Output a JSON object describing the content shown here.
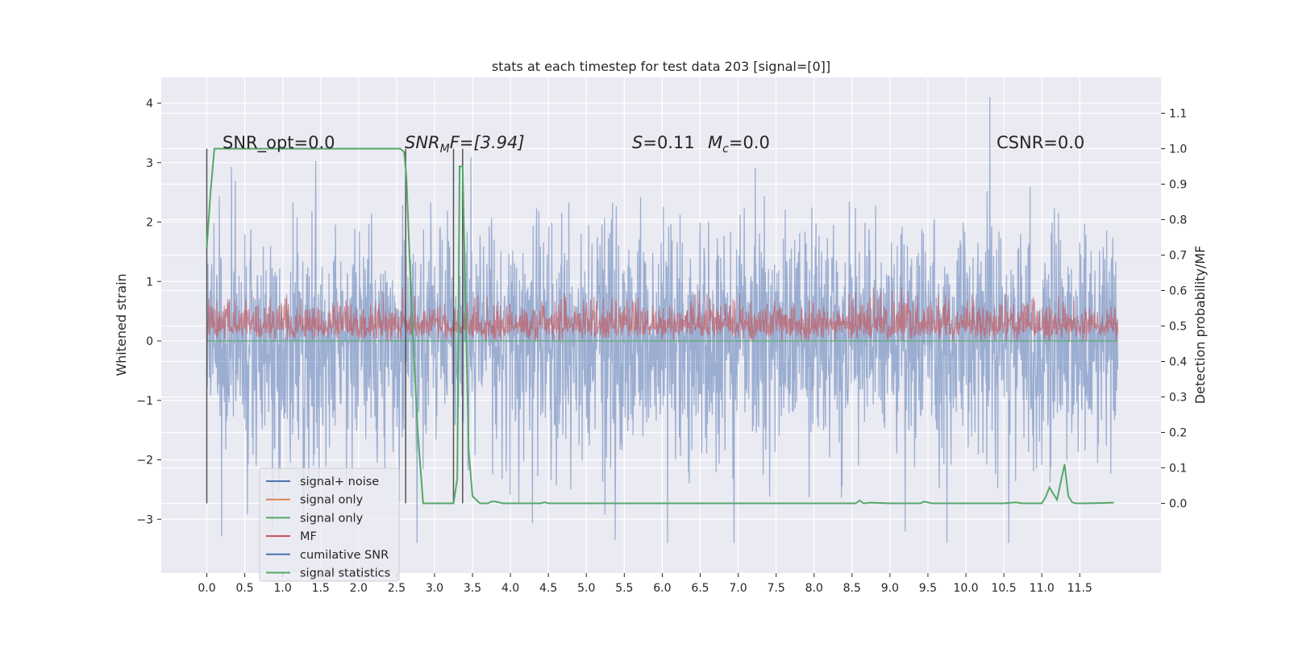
{
  "chart_data": {
    "type": "line",
    "title": "stats at each timestep for test data 203 [signal=[0]]",
    "ylabel_left": "Whitened strain",
    "ylabel_right": "Detection probability/MF",
    "xlabel": "",
    "xlim": [
      -0.6,
      12.6
    ],
    "ylim_left": [
      -3.9,
      4.4
    ],
    "ylim_right": [
      -0.2,
      1.2
    ],
    "x_ticks": [
      "0.0",
      "0.5",
      "1.0",
      "1.5",
      "2.0",
      "2.5",
      "3.0",
      "3.5",
      "4.0",
      "4.5",
      "5.0",
      "5.5",
      "6.0",
      "6.5",
      "7.0",
      "7.5",
      "8.0",
      "8.5",
      "9.0",
      "9.5",
      "10.0",
      "10.5",
      "11.0",
      "11.5"
    ],
    "y_ticks_left": [
      "4",
      "3",
      "2",
      "1",
      "0",
      "−1",
      "−2",
      "−3"
    ],
    "y_ticks_right": [
      "1.1",
      "1.0",
      "0.9",
      "0.8",
      "0.7",
      "0.6",
      "0.5",
      "0.4",
      "0.3",
      "0.2",
      "0.1",
      "0.0"
    ],
    "grid": true,
    "legend_position": "lower-left",
    "annotations": {
      "snr_opt": "SNR_opt=0.0",
      "snr_mf_pre": "SNR",
      "snr_mf_sub": "M",
      "snr_mf_post": "F=[3.94]",
      "s_var": "S",
      "s_val": "=0.11",
      "mc_var": "M",
      "mc_sub": "c",
      "mc_val": "=0.0",
      "csnr": "CSNR=0.0"
    },
    "legend": [
      {
        "label": "signal+ noise",
        "color": "#4c72b0"
      },
      {
        "label": "signal only",
        "color": "#dd8452"
      },
      {
        "label": "signal only",
        "color": "#55a868"
      },
      {
        "label": "MF",
        "color": "#c44e52"
      },
      {
        "label": "cumilative SNR",
        "color": "#4c72b0"
      },
      {
        "label": "signal statistics",
        "color": "#55a868"
      }
    ],
    "series": [
      {
        "name": "signal+ noise",
        "color": "#4c72b0",
        "description_range": [
          -3.4,
          4.1
        ],
        "x_range": [
          0.0,
          12.0
        ]
      },
      {
        "name": "MF",
        "color": "#c44e52",
        "range": [
          0.0,
          0.9
        ],
        "x_range": [
          0.0,
          12.0
        ]
      },
      {
        "name": "signal statistics",
        "color": "#55a868",
        "x": [
          0.0,
          0.05,
          0.1,
          0.2,
          0.5,
          1.0,
          1.5,
          2.0,
          2.4,
          2.55,
          2.6,
          2.63,
          2.67,
          2.72,
          2.78,
          2.85,
          2.95,
          3.1,
          3.2,
          3.25,
          3.3,
          3.33,
          3.37,
          3.4,
          3.45,
          3.5,
          3.6,
          3.7,
          3.75,
          3.8,
          3.9,
          4.0,
          4.4,
          4.45,
          4.5,
          5.0,
          6.0,
          7.0,
          8.0,
          8.55,
          8.6,
          8.65,
          8.75,
          9.0,
          9.4,
          9.45,
          9.55,
          10.0,
          10.5,
          10.65,
          10.75,
          11.0,
          11.05,
          11.1,
          11.2,
          11.3,
          11.35,
          11.4,
          11.45,
          11.6,
          11.95
        ],
        "y": [
          0.72,
          0.88,
          1.0,
          1.0,
          1.0,
          1.0,
          1.0,
          1.0,
          1.0,
          1.0,
          0.99,
          0.92,
          0.7,
          0.45,
          0.2,
          0.0,
          0.0,
          0.0,
          0.0,
          0.0,
          0.07,
          0.95,
          0.95,
          0.65,
          0.15,
          0.02,
          0.0,
          0.0,
          0.005,
          0.005,
          0.0,
          0.0,
          0.0,
          0.003,
          0.0,
          0.0,
          0.0,
          0.0,
          0.0,
          0.0,
          0.008,
          0.0,
          0.002,
          0.0,
          0.0,
          0.005,
          0.0,
          0.0,
          0.0,
          0.003,
          0.0,
          0.0,
          0.018,
          0.045,
          0.01,
          0.11,
          0.02,
          0.003,
          0.0,
          0.0,
          0.002
        ]
      }
    ],
    "vertical_markers": [
      {
        "x": 0.0,
        "color": "#555555"
      },
      {
        "x": 2.62,
        "color": "#555555"
      },
      {
        "x": 3.25,
        "color": "#555555"
      },
      {
        "x": 3.37,
        "color": "#555555"
      }
    ]
  }
}
